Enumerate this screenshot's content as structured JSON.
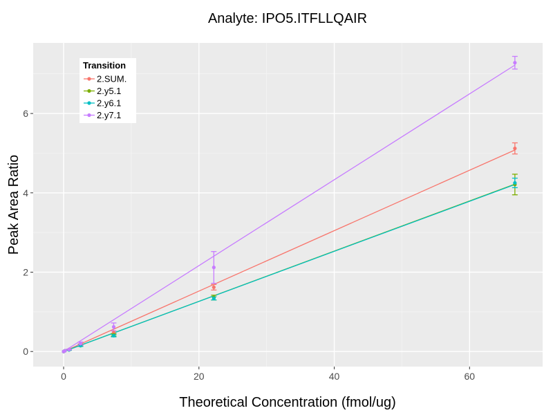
{
  "chart_data": {
    "type": "scatter",
    "title": "Analyte: IPO5.ITFLLQAIR",
    "xlabel": "Theoretical Concentration (fmol/ug)",
    "ylabel": "Peak Area Ratio",
    "xlim": [
      -4.5,
      70.8
    ],
    "ylim": [
      -0.38,
      7.78
    ],
    "x_ticks": [
      0,
      20,
      40,
      60
    ],
    "y_ticks": [
      0,
      2,
      4,
      6
    ],
    "x_tick_labels": [
      "0",
      "20",
      "40",
      "60"
    ],
    "y_tick_labels": [
      "0",
      "2",
      "4",
      "6"
    ],
    "grid": true,
    "legend": {
      "title": "Transition",
      "position": "top-left"
    },
    "x": [
      0,
      0.2,
      0.8,
      2.5,
      7.4,
      22.2,
      66.7
    ],
    "series": [
      {
        "name": "2.SUM.",
        "color": "#F8766D",
        "values": [
          0.0,
          0.02,
          0.05,
          0.17,
          0.48,
          1.62,
          5.12
        ],
        "err": [
          0.0,
          0.0,
          0.01,
          0.02,
          0.04,
          0.07,
          0.14
        ],
        "fit": [
          [
            0,
            0.0
          ],
          [
            66.7,
            5.08
          ]
        ]
      },
      {
        "name": "2.y5.1",
        "color": "#7CAE00",
        "values": [
          0.0,
          0.02,
          0.04,
          0.15,
          0.42,
          1.36,
          4.21
        ],
        "err": [
          0.0,
          0.0,
          0.01,
          0.02,
          0.03,
          0.06,
          0.26
        ],
        "fit": [
          [
            0,
            0.0
          ],
          [
            66.7,
            4.22
          ]
        ]
      },
      {
        "name": "2.y6.1",
        "color": "#00BFC4",
        "values": [
          0.0,
          0.02,
          0.04,
          0.15,
          0.4,
          1.34,
          4.25
        ],
        "err": [
          0.0,
          0.0,
          0.01,
          0.02,
          0.03,
          0.04,
          0.12
        ],
        "fit": [
          [
            0,
            0.0
          ],
          [
            66.7,
            4.21
          ]
        ]
      },
      {
        "name": "2.y7.1",
        "color": "#C77CFF",
        "values": [
          0.0,
          0.02,
          0.05,
          0.2,
          0.62,
          2.12,
          7.28
        ],
        "err": [
          0.0,
          0.0,
          0.01,
          0.04,
          0.1,
          0.4,
          0.16
        ],
        "fit": [
          [
            0,
            0.0
          ],
          [
            66.7,
            7.22
          ]
        ]
      }
    ]
  }
}
